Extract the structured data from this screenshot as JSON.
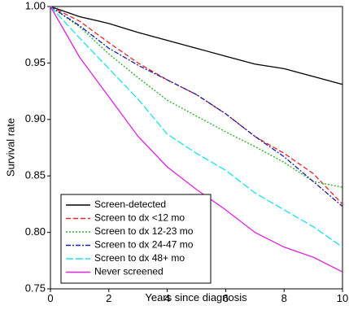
{
  "chart_data": {
    "type": "line",
    "xlabel": "Years since diagnosis",
    "ylabel": "Survival rate",
    "x": [
      0,
      1,
      2,
      3,
      4,
      5,
      6,
      7,
      8,
      9,
      10
    ],
    "series": [
      {
        "name": "Screen-detected",
        "color": "#000000",
        "dash": "none",
        "values": [
          1.0,
          0.991,
          0.985,
          0.977,
          0.97,
          0.963,
          0.956,
          0.949,
          0.945,
          0.938,
          0.931
        ]
      },
      {
        "name": "Screen to dx <12 mo",
        "color": "#e8262a",
        "dash": "6 3",
        "values": [
          1.0,
          0.987,
          0.968,
          0.95,
          0.935,
          0.922,
          0.905,
          0.885,
          0.87,
          0.852,
          0.825
        ]
      },
      {
        "name": "Screen to dx 12-23 mo",
        "color": "#22b022",
        "dash": "2 2",
        "values": [
          1.0,
          0.982,
          0.958,
          0.937,
          0.917,
          0.903,
          0.889,
          0.876,
          0.862,
          0.845,
          0.84
        ]
      },
      {
        "name": "Screen to dx 24-47 mo",
        "color": "#1a1aa8",
        "dash": "6 2 2 2",
        "values": [
          1.0,
          0.983,
          0.963,
          0.948,
          0.935,
          0.922,
          0.905,
          0.885,
          0.867,
          0.845,
          0.823
        ]
      },
      {
        "name": "Screen to dx 48+ mo",
        "color": "#1ee0e8",
        "dash": "9 3",
        "values": [
          1.0,
          0.972,
          0.945,
          0.918,
          0.887,
          0.87,
          0.855,
          0.835,
          0.82,
          0.805,
          0.787
        ]
      },
      {
        "name": "Never screened",
        "color": "#e020e0",
        "dash": "none",
        "values": [
          1.0,
          0.955,
          0.92,
          0.885,
          0.858,
          0.838,
          0.82,
          0.8,
          0.787,
          0.778,
          0.765
        ]
      }
    ],
    "xlim": [
      0,
      10
    ],
    "ylim": [
      0.75,
      1.0
    ],
    "xticks": [
      0,
      2,
      4,
      6,
      8,
      10
    ],
    "yticks": [
      {
        "value": 1.0,
        "label": "1.00"
      },
      0.95,
      {
        "value": 0.9,
        "label": "0.90"
      },
      0.85,
      {
        "value": 0.8,
        "label": "0.80"
      },
      0.75
    ],
    "legend": "lower left"
  }
}
